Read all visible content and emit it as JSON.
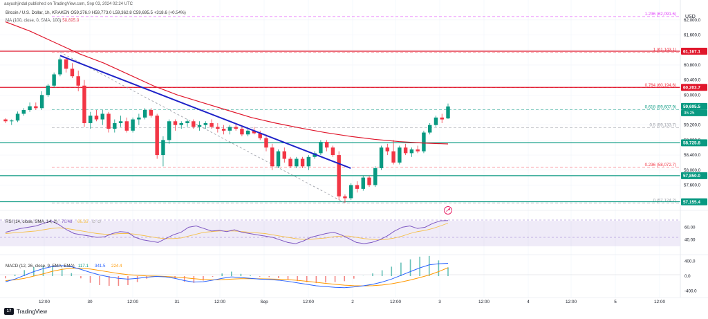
{
  "header": {
    "byline": "aayushjindal published on TradingView.com, Sep 03, 2024 02:24 UTC",
    "symbol_line": "Bitcoin / U.S. Dollar, 1h, KRAKEN",
    "ohlc": "O59,376.9 H59,773.0 L59,362.8 C59,695.5 +318.6 (+0.54%)",
    "ma_label": "MA (100, close, 0, SMA, 100)",
    "ma_value": "58,695.8"
  },
  "axis": {
    "currency": "USD",
    "price_ticks": [
      "62,000.0",
      "61,600.0",
      "61,200.0",
      "60,800.0",
      "60,400.0",
      "60,000.0",
      "59,600.0",
      "59,200.0",
      "58,800.0",
      "58,400.0",
      "58,000.0",
      "57,600.0"
    ],
    "rsi_ticks": [
      "60.00",
      "40.00"
    ],
    "macd_ticks": [
      "400.0",
      "0.0",
      "-400.0"
    ],
    "time_labels": [
      "12:00",
      "30",
      "12:00",
      "31",
      "12:00",
      "Sep",
      "12:00",
      "2",
      "12:00",
      "3",
      "12:00",
      "4",
      "12:00",
      "5",
      "12:00"
    ]
  },
  "price_badges": {
    "resistance1": "61,167.1",
    "resistance2": "60,203.7",
    "last": "59,695.5",
    "countdown": "35:25",
    "support1": "58,725.8",
    "support2": "57,850.0",
    "support3": "57,155.4"
  },
  "fib_labels": [
    "1.236 (62,091.6)",
    "1 (61,143.1)",
    "0.764 (60,194.6)",
    "0.618 (59,607.9)",
    "0.5 (59,133.7)",
    "0.236 (58,072.7)",
    "0 (57,124.2)"
  ],
  "rsi_panel": {
    "label": "RSI (14, close, SMA, 14, 2)",
    "v1": "70.48",
    "v2": "66.35",
    "v3": "∅",
    "v4": "∅"
  },
  "macd_panel": {
    "label": "MACD (12, 26, close, 9, EMA, EMA)",
    "v1": "117.1",
    "v2": "341.5",
    "v3": "224.4"
  },
  "footer": {
    "brand": "TradingView"
  },
  "colors": {
    "up": "#089981",
    "down": "#f23645",
    "ma": "#e0162b",
    "trendline": "#1e22c8",
    "fib_neutral": "#9598a1",
    "rsi_line": "#7e57c2"
  },
  "chart_data": [
    {
      "type": "candlestick",
      "title": "Bitcoin / U.S. Dollar, 1h, KRAKEN",
      "ylabel": "USD",
      "ylim": [
        57000,
        62200
      ],
      "candles": [
        [
          59350,
          59380,
          59250,
          59300
        ],
        [
          59300,
          59350,
          59200,
          59320
        ],
        [
          59320,
          59560,
          59280,
          59500
        ],
        [
          59500,
          59650,
          59450,
          59600
        ],
        [
          59600,
          59800,
          59550,
          59700
        ],
        [
          59700,
          59800,
          59600,
          59650
        ],
        [
          59650,
          60100,
          59600,
          60000
        ],
        [
          60000,
          60300,
          59950,
          60250
        ],
        [
          60250,
          60600,
          60200,
          60550
        ],
        [
          60550,
          61000,
          60500,
          60950
        ],
        [
          60950,
          61000,
          60600,
          60700
        ],
        [
          60700,
          60850,
          60450,
          60500
        ],
        [
          60500,
          60650,
          60100,
          60250
        ],
        [
          60250,
          60400,
          59150,
          59250
        ],
        [
          59250,
          59550,
          59100,
          59450
        ],
        [
          59450,
          59600,
          59300,
          59350
        ],
        [
          59350,
          59600,
          59200,
          59500
        ],
        [
          59500,
          59550,
          59000,
          59100
        ],
        [
          59100,
          59350,
          59000,
          59250
        ],
        [
          59250,
          59450,
          59150,
          59300
        ],
        [
          59300,
          59400,
          59000,
          59050
        ],
        [
          59050,
          59400,
          59000,
          59350
        ],
        [
          59350,
          59500,
          59200,
          59400
        ],
        [
          59400,
          59650,
          59350,
          59600
        ],
        [
          59600,
          59650,
          59400,
          59450
        ],
        [
          59450,
          59500,
          58300,
          58400
        ],
        [
          58400,
          58900,
          58100,
          58800
        ],
        [
          58800,
          59350,
          58700,
          59300
        ],
        [
          59300,
          59350,
          59050,
          59200
        ],
        [
          59200,
          59300,
          59100,
          59250
        ],
        [
          59250,
          59350,
          59150,
          59300
        ],
        [
          59300,
          59350,
          59100,
          59150
        ],
        [
          59150,
          59300,
          59050,
          59200
        ],
        [
          59200,
          59300,
          59100,
          59250
        ],
        [
          59250,
          59350,
          59100,
          59150
        ],
        [
          59150,
          59250,
          59000,
          59100
        ],
        [
          59100,
          59200,
          58950,
          59050
        ],
        [
          59050,
          59200,
          58950,
          59150
        ],
        [
          59150,
          59250,
          59050,
          59100
        ],
        [
          59100,
          59150,
          58900,
          58950
        ],
        [
          58950,
          59100,
          58900,
          59050
        ],
        [
          59050,
          59150,
          58950,
          58980
        ],
        [
          58980,
          59050,
          58800,
          58850
        ],
        [
          58850,
          58950,
          58500,
          58600
        ],
        [
          58600,
          58700,
          58000,
          58100
        ],
        [
          58100,
          58550,
          58050,
          58500
        ],
        [
          58500,
          58600,
          58200,
          58300
        ],
        [
          58300,
          58350,
          58050,
          58100
        ],
        [
          58100,
          58350,
          58050,
          58300
        ],
        [
          58300,
          58350,
          58050,
          58100
        ],
        [
          58100,
          58400,
          58000,
          58350
        ],
        [
          58350,
          58500,
          58300,
          58450
        ],
        [
          58450,
          58800,
          58400,
          58750
        ],
        [
          58750,
          58800,
          58500,
          58600
        ],
        [
          58600,
          58650,
          58350,
          58400
        ],
        [
          58400,
          58500,
          57200,
          57300
        ],
        [
          57300,
          57350,
          57124,
          57250
        ],
        [
          57250,
          57650,
          57200,
          57600
        ],
        [
          57600,
          57700,
          57400,
          57500
        ],
        [
          57500,
          57850,
          57450,
          57800
        ],
        [
          57800,
          57850,
          57550,
          57600
        ],
        [
          57600,
          58100,
          57550,
          58050
        ],
        [
          58050,
          58650,
          58000,
          58600
        ],
        [
          58600,
          58700,
          58400,
          58500
        ],
        [
          58500,
          58800,
          58150,
          58200
        ],
        [
          58200,
          58650,
          58150,
          58600
        ],
        [
          58600,
          58700,
          58400,
          58450
        ],
        [
          58450,
          58600,
          58350,
          58550
        ],
        [
          58550,
          58650,
          58450,
          58500
        ],
        [
          58500,
          59050,
          58450,
          59000
        ],
        [
          59000,
          59250,
          58950,
          59200
        ],
        [
          59200,
          59450,
          59150,
          59400
        ],
        [
          59400,
          59500,
          59250,
          59350
        ],
        [
          59376.9,
          59773.0,
          59362.8,
          59695.5
        ]
      ],
      "ma100_close": [
        61950,
        61700,
        61400,
        61100,
        60850,
        60550,
        60250,
        60000,
        59800,
        59600,
        59400,
        59250,
        59120,
        59000,
        58900,
        58820,
        58760,
        58720,
        58695.8
      ],
      "levels": [
        61167.1,
        60203.7,
        58725.8,
        57850.0,
        57155.4
      ],
      "fibonacci": [
        {
          "ratio": 1.236,
          "price": 62091.6
        },
        {
          "ratio": 1,
          "price": 61143.1
        },
        {
          "ratio": 0.764,
          "price": 60194.6
        },
        {
          "ratio": 0.618,
          "price": 59607.9
        },
        {
          "ratio": 0.5,
          "price": 59133.7
        },
        {
          "ratio": 0.236,
          "price": 58072.7
        },
        {
          "ratio": 0,
          "price": 57124.2
        }
      ],
      "trendline": [
        [
          61050,
          0
        ],
        [
          58050,
          0.78
        ]
      ]
    },
    {
      "type": "line",
      "title": "RSI (14, close, SMA, 14, 2)",
      "ylim": [
        20,
        80
      ],
      "series": [
        {
          "name": "RSI",
          "values": [
            52,
            55,
            58,
            60,
            62,
            66,
            70,
            64,
            56,
            50,
            48,
            46,
            44,
            45,
            50,
            53,
            52,
            44,
            40,
            38,
            36,
            42,
            48,
            52,
            60,
            62,
            58,
            54,
            55,
            53,
            56,
            52,
            50,
            48,
            46,
            44,
            40,
            36,
            34,
            38,
            44,
            47,
            50,
            52,
            48,
            42,
            36,
            34,
            36,
            40,
            46,
            54,
            60,
            62,
            58,
            60,
            66,
            70,
            70.48
          ]
        },
        {
          "name": "SMA",
          "values": [
            50,
            51,
            52,
            53,
            54,
            56,
            58,
            59,
            58,
            56,
            54,
            52,
            50,
            49,
            49,
            50,
            50,
            49,
            47,
            45,
            43,
            42,
            42,
            43,
            46,
            49,
            52,
            53,
            54,
            54,
            54,
            53,
            52,
            51,
            50,
            48,
            46,
            44,
            42,
            41,
            41,
            42,
            43,
            45,
            46,
            46,
            44,
            42,
            41,
            40,
            41,
            43,
            46,
            50,
            53,
            55,
            58,
            62,
            66.35
          ]
        }
      ]
    },
    {
      "type": "line",
      "title": "MACD (12, 26, close, 9, EMA, EMA)",
      "ylim": [
        -500,
        500
      ],
      "series": [
        {
          "name": "MACD",
          "values": [
            -150,
            -80,
            20,
            120,
            200,
            260,
            280,
            250,
            180,
            100,
            30,
            -20,
            -60,
            -80,
            -60,
            -30,
            -10,
            -20,
            -60,
            -120,
            -160,
            -150,
            -110,
            -60,
            -20,
            -40,
            -60,
            -80,
            -90,
            -110,
            -140,
            -180,
            -220,
            -260,
            -280,
            -300,
            -310,
            -290,
            -260,
            -220,
            -160,
            -80,
            20,
            120,
            220,
            300,
            330,
            341.5
          ]
        },
        {
          "name": "Signal",
          "values": [
            -120,
            -100,
            -60,
            0,
            60,
            130,
            180,
            210,
            210,
            190,
            150,
            110,
            70,
            40,
            20,
            5,
            0,
            -10,
            -25,
            -45,
            -70,
            -90,
            -100,
            -95,
            -80,
            -70,
            -70,
            -72,
            -76,
            -84,
            -96,
            -114,
            -138,
            -166,
            -194,
            -220,
            -242,
            -256,
            -262,
            -256,
            -238,
            -206,
            -160,
            -104,
            -40,
            30,
            120,
            224.4
          ]
        }
      ]
    }
  ]
}
